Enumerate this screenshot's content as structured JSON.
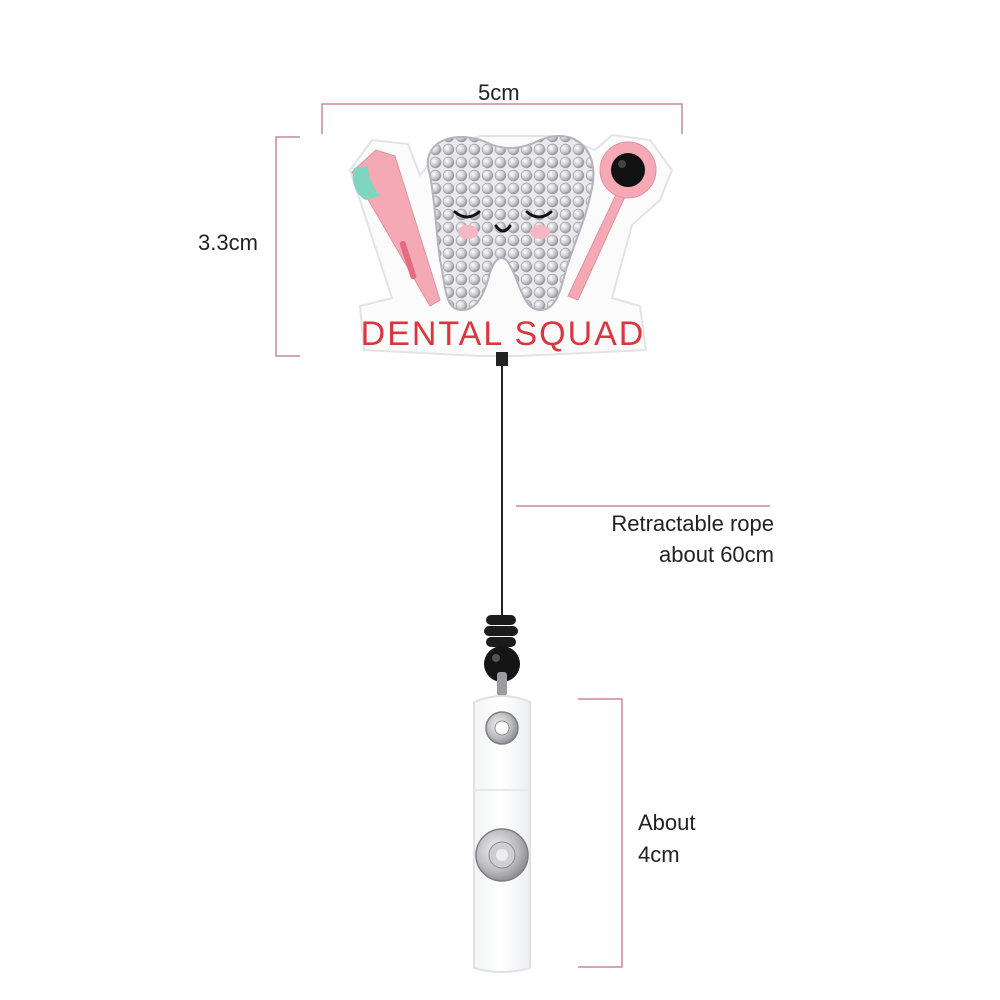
{
  "badge": {
    "text": "DENTAL SQUAD",
    "text_color": "#d9363e",
    "pink_color": "#f4a9b4",
    "mint_color": "#7fd6c0"
  },
  "dimensions": {
    "width_label": "5cm",
    "height_label": "3.3cm",
    "rope_label_line1": "Retractable rope",
    "rope_label_line2": "about 60cm",
    "clip_label_line1": "About",
    "clip_label_line2": "4cm",
    "line_color": "#c98a97"
  }
}
